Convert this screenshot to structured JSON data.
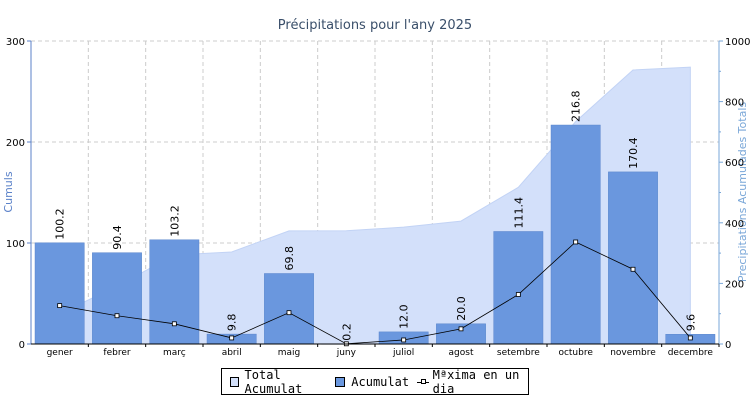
{
  "chart_data": {
    "type": "bar",
    "title": "Précipitations pour l'any 2025",
    "ylabel": "Cumuls",
    "y2label": "Precipitations Acumulades Totals",
    "ylim": [
      0,
      300
    ],
    "y2lim": [
      0,
      1000
    ],
    "yticks": [
      "0",
      "100",
      "200",
      "300"
    ],
    "y2ticks": [
      "0",
      "200",
      "400",
      "600",
      "800",
      "1000"
    ],
    "grid": true,
    "legend_position": "bottom",
    "categories": [
      "gener",
      "febrer",
      "març",
      "abril",
      "maig",
      "juny",
      "juliol",
      "agost",
      "setembre",
      "octubre",
      "novembre",
      "decembre"
    ],
    "series": [
      {
        "name": "Total Acumulat",
        "type": "area",
        "axis": "right",
        "values": [
          100.2,
          190.6,
          293.8,
          303.6,
          373.4,
          373.6,
          385.6,
          405.6,
          517.0,
          733.8,
          904.2,
          913.8
        ]
      },
      {
        "name": "Acumulat",
        "type": "bar",
        "axis": "left",
        "values": [
          100.2,
          90.4,
          103.2,
          9.8,
          69.8,
          0.2,
          12.0,
          20.0,
          111.4,
          216.8,
          170.4,
          9.6
        ],
        "labels": [
          "100.2",
          "90.4",
          "103.2",
          "9.8",
          "69.8",
          "0.2",
          "12.0",
          "20.0",
          "111.4",
          "216.8",
          "170.4",
          "9.6"
        ]
      },
      {
        "name": "Màxima en un dia",
        "legend_text": "Mªxima en un dia",
        "type": "line",
        "axis": "left",
        "values": [
          38,
          28,
          20,
          6,
          31,
          0.2,
          4,
          15,
          49,
          101,
          74,
          6
        ]
      }
    ],
    "colors": {
      "area": "#d3e0fa",
      "area_edge": "#c2d3f5",
      "bar": "#6a97de",
      "bar_edge": "#5a86cc",
      "line": "#000000",
      "axis_left": "#5b82c9",
      "axis_right": "#7aa7d8",
      "grid": "#cccccc",
      "title": "#3a4f6a"
    }
  }
}
